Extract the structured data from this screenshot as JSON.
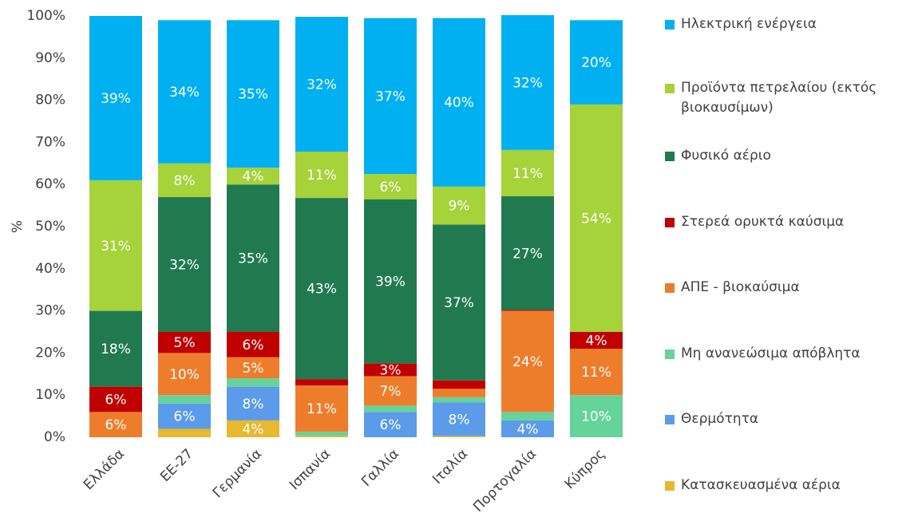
{
  "chart_data": {
    "type": "stacked_bar",
    "y_axis_label": "%",
    "categories": [
      "Ελλάδα",
      "ΕΕ-27",
      "Γερμανία",
      "Ισπανία",
      "Γαλλία",
      "Ιταλία",
      "Πορτογαλία",
      "Κύπρος"
    ],
    "ylim": [
      0,
      100
    ],
    "yticks": [
      {
        "value": 0,
        "label": "0%"
      },
      {
        "value": 10,
        "label": "10%"
      },
      {
        "value": 20,
        "label": "20%"
      },
      {
        "value": 30,
        "label": "30%"
      },
      {
        "value": 40,
        "label": "40%"
      },
      {
        "value": 50,
        "label": "50%"
      },
      {
        "value": 60,
        "label": "60%"
      },
      {
        "value": 70,
        "label": "70%"
      },
      {
        "value": 80,
        "label": "80%"
      },
      {
        "value": 90,
        "label": "90%"
      },
      {
        "value": 100,
        "label": "100%"
      }
    ],
    "series": [
      {
        "name": "Κατασκευασμένα αέρια",
        "color": "#e6b92e",
        "values": [
          0,
          2,
          4,
          0.3,
          0,
          0.3,
          0,
          0
        ],
        "value_labels": [
          null,
          null,
          "4%",
          null,
          null,
          null,
          null,
          null
        ]
      },
      {
        "name": "Θερμότητα",
        "color": "#5b9bea",
        "values": [
          0,
          6,
          8,
          0,
          6,
          8,
          4,
          0
        ],
        "value_labels": [
          null,
          "6%",
          "8%",
          null,
          "6%",
          "8%",
          "4%",
          null
        ]
      },
      {
        "name": "Μη ανανεώσιμα απόβλητα",
        "color": "#66d39a",
        "values": [
          0,
          2,
          2,
          1,
          1.5,
          1.2,
          2,
          10
        ],
        "value_labels": [
          null,
          null,
          null,
          null,
          null,
          null,
          null,
          "10%"
        ]
      },
      {
        "name": "ΑΠΕ - βιοκαύσιμα",
        "color": "#ee7d2b",
        "values": [
          6,
          10,
          5,
          11,
          7,
          2,
          24,
          11
        ],
        "value_labels": [
          "6%",
          "10%",
          "5%",
          "11%",
          "7%",
          null,
          "24%",
          "11%"
        ]
      },
      {
        "name": "Στερεά ορυκτά καύσιμα",
        "color": "#c00000",
        "values": [
          6,
          5,
          6,
          1.5,
          3,
          2,
          0.2,
          4
        ],
        "value_labels": [
          "6%",
          "5%",
          "6%",
          null,
          "3%",
          null,
          null,
          "4%"
        ]
      },
      {
        "name": "Φυσικό αέριο",
        "color": "#217a4f",
        "values": [
          18,
          32,
          35,
          43,
          39,
          37,
          27,
          0
        ],
        "value_labels": [
          "18%",
          "32%",
          "35%",
          "43%",
          "39%",
          "37%",
          "27%",
          null
        ]
      },
      {
        "name": "Προϊόντα πετρελαίου (εκτός βιοκαυσίμων)",
        "color": "#a6d23a",
        "values": [
          31,
          8,
          4,
          11,
          6,
          9,
          11,
          54
        ],
        "value_labels": [
          "31%",
          "8%",
          "4%",
          "11%",
          "6%",
          "9%",
          "11%",
          "54%"
        ]
      },
      {
        "name": "Ηλεκτρική ενέργεια",
        "color": "#00b0f0",
        "values": [
          39,
          34,
          35,
          32,
          37,
          40,
          32,
          20
        ],
        "value_labels": [
          "39%",
          "34%",
          "35%",
          "32%",
          "37%",
          "40%",
          "32%",
          "20%"
        ]
      }
    ]
  }
}
